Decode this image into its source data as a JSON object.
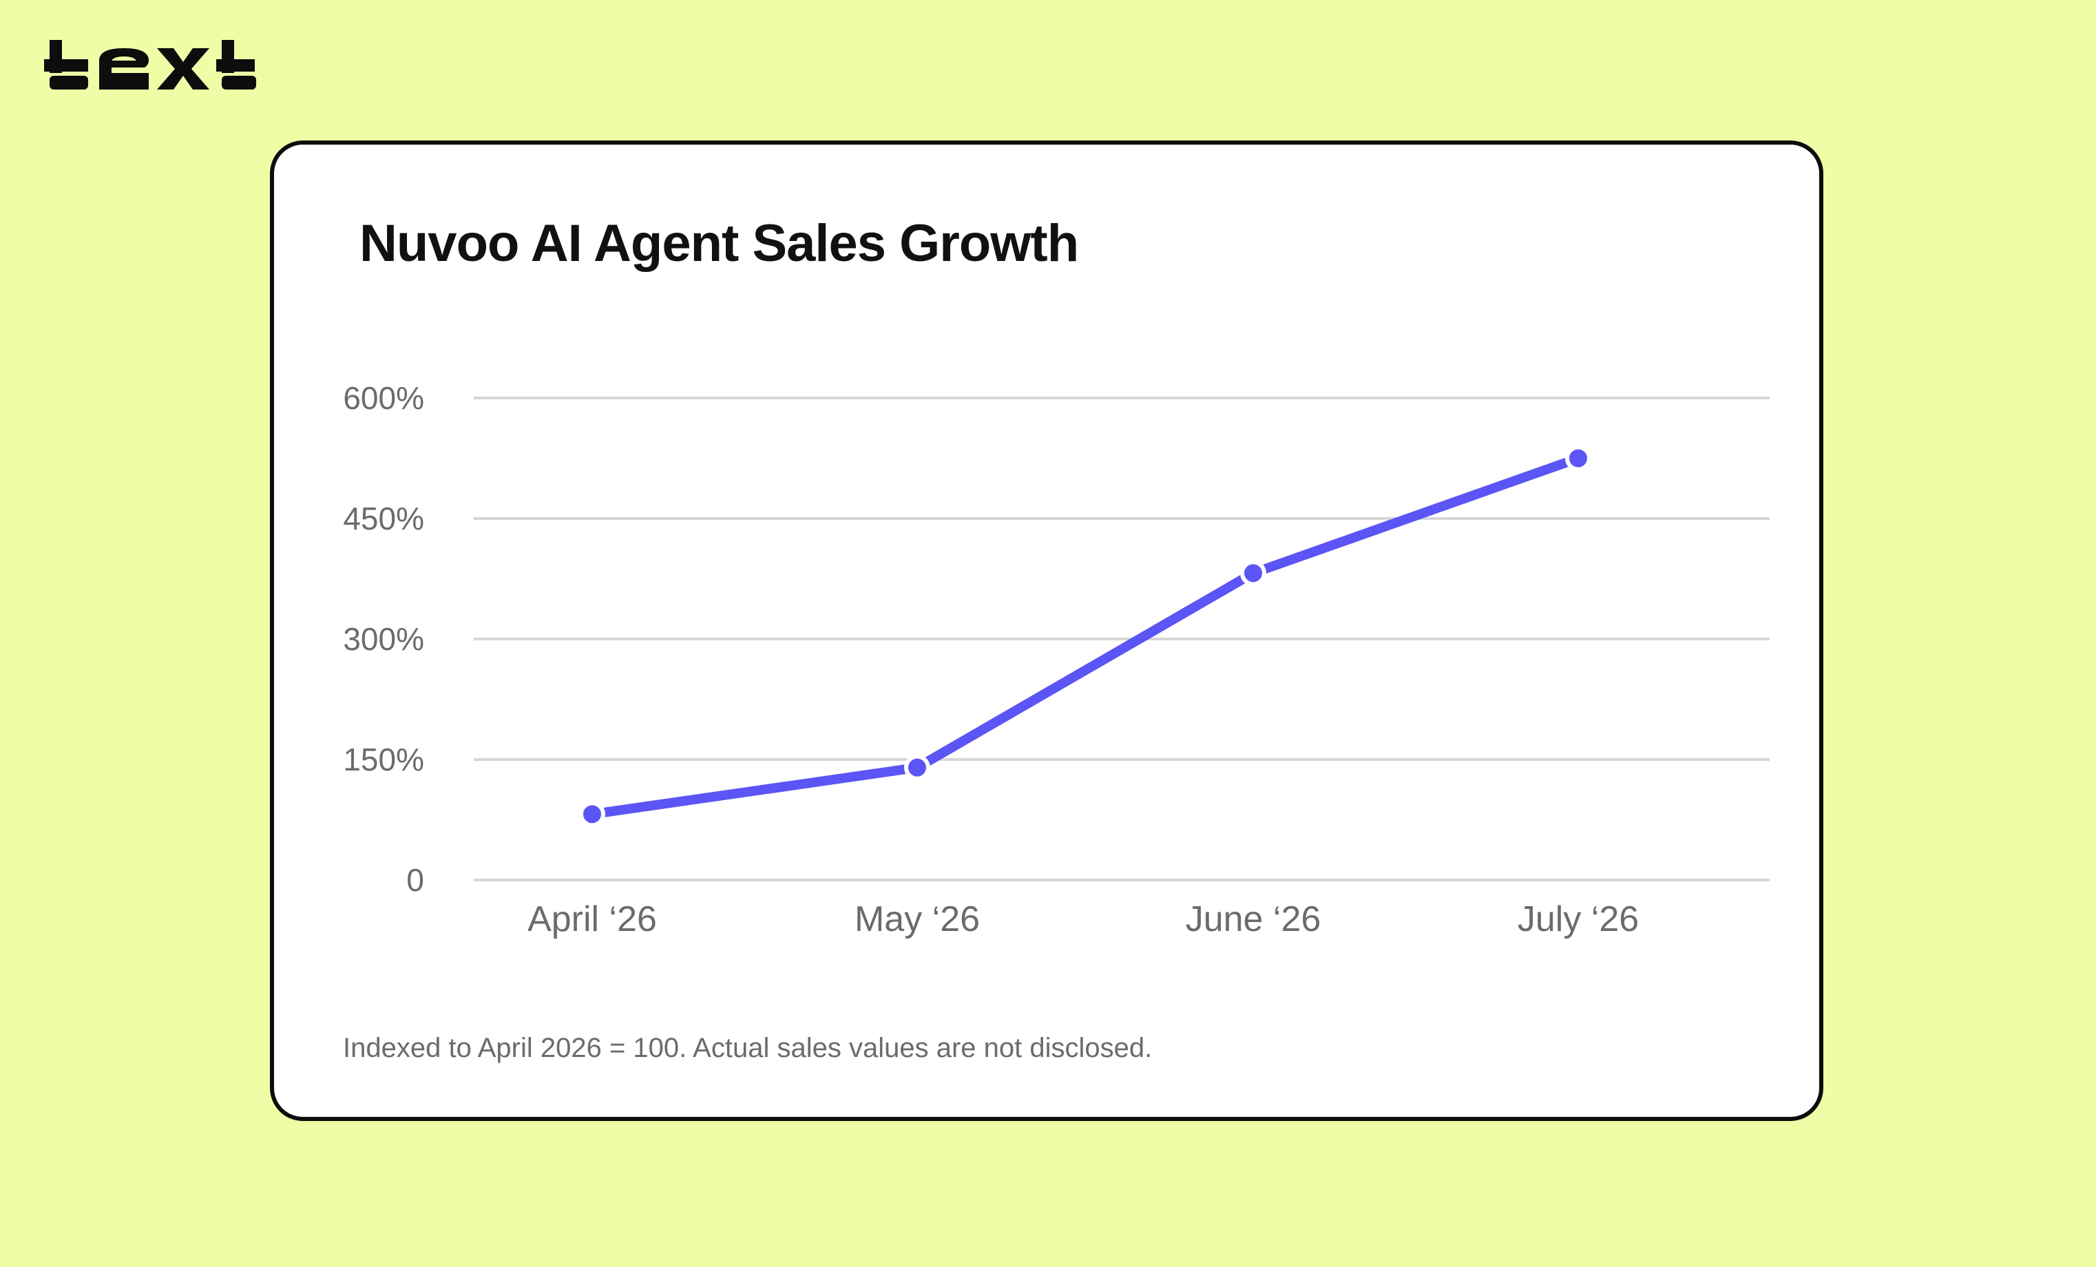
{
  "brand": {
    "logo_text": "text"
  },
  "colors": {
    "background": "#f0fda6",
    "card": "#ffffff",
    "border": "#0d0d0d",
    "series": "#5b55f5",
    "grid": "#d6d6d6",
    "tick_text": "#6b6b6b",
    "title": "#111111"
  },
  "chart_data": {
    "type": "line",
    "title": "Nuvoo AI Agent Sales Growth",
    "xlabel": "",
    "ylabel": "",
    "categories": [
      "April ‘26",
      "May ‘26",
      "June ‘26",
      "July ‘26"
    ],
    "series": [
      {
        "values": [
          82,
          140,
          382,
          525
        ]
      }
    ],
    "yticks": [
      0,
      150,
      300,
      450,
      600
    ],
    "ytick_labels": [
      "0",
      "150%",
      "300%",
      "450%",
      "600%"
    ],
    "ylim": [
      0,
      600
    ],
    "grid": "horizontal",
    "legend": "none",
    "footnote": "Indexed to April 2026 = 100. Actual sales values are not disclosed."
  }
}
